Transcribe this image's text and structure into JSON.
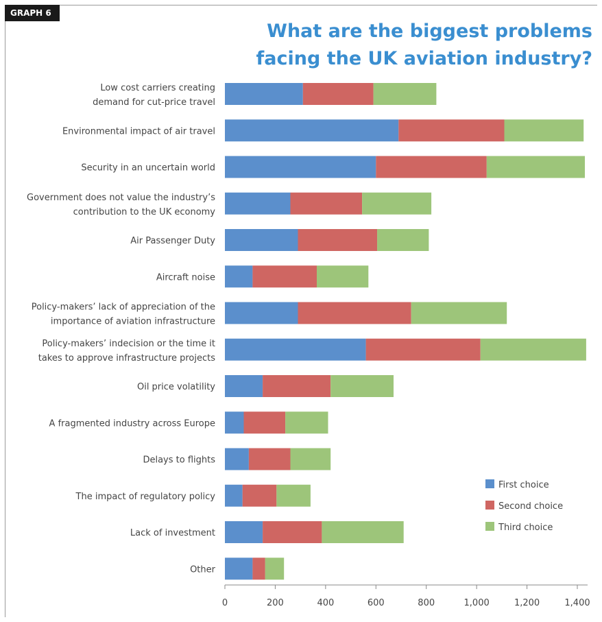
{
  "header": {
    "tag": "GRAPH 6",
    "title_line1": "What are the biggest problems",
    "title_line2": "facing the UK aviation industry?"
  },
  "colors": {
    "title": "#3a8ed0",
    "first": "#5b8fcc",
    "second": "#cf6662",
    "third": "#9dc57a"
  },
  "chart_data": {
    "type": "bar",
    "orientation": "horizontal",
    "stacked": true,
    "title": "What are the biggest problems facing the UK aviation industry?",
    "xlim": [
      0,
      1400
    ],
    "xticks": [
      0,
      200,
      400,
      600,
      800,
      1000,
      1200,
      1400
    ],
    "xtick_labels": [
      "0",
      "200",
      "400",
      "600",
      "800",
      "1,000",
      "1,200",
      "1,400"
    ],
    "legend_position": "right",
    "categories": [
      [
        "Low cost carriers creating",
        "demand for cut-price travel"
      ],
      [
        "Environmental impact of air travel"
      ],
      [
        "Security in an uncertain world"
      ],
      [
        "Government does not value the industry’s",
        "contribution to the UK economy"
      ],
      [
        "Air Passenger Duty"
      ],
      [
        "Aircraft noise"
      ],
      [
        "Policy-makers’ lack of appreciation of the",
        "importance of aviation infrastructure"
      ],
      [
        "Policy-makers’ indecision or the time it",
        "takes to approve infrastructure projects"
      ],
      [
        "Oil price volatility"
      ],
      [
        "A fragmented industry across Europe"
      ],
      [
        "Delays to flights"
      ],
      [
        "The impact of regulatory policy"
      ],
      [
        "Lack of investment"
      ],
      [
        "Other"
      ]
    ],
    "series": [
      {
        "name": "First choice",
        "values": [
          310,
          690,
          600,
          260,
          290,
          110,
          290,
          560,
          150,
          75,
          95,
          70,
          150,
          110
        ]
      },
      {
        "name": "Second choice",
        "values": [
          280,
          420,
          440,
          285,
          315,
          255,
          450,
          455,
          270,
          165,
          165,
          135,
          235,
          50
        ]
      },
      {
        "name": "Third choice",
        "values": [
          250,
          315,
          390,
          275,
          205,
          205,
          380,
          420,
          250,
          170,
          160,
          135,
          325,
          75
        ]
      }
    ]
  }
}
